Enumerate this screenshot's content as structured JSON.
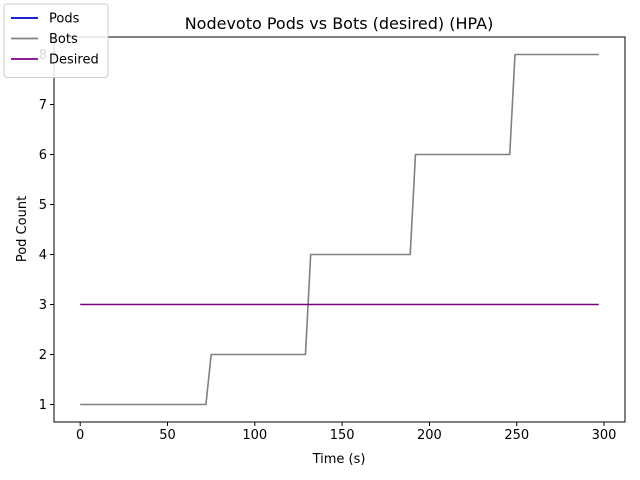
{
  "chart_data": {
    "type": "line",
    "title": "Nodevoto Pods vs Bots (desired)  (HPA)",
    "xlabel": "Time (s)",
    "ylabel": "Pod Count",
    "xlim": [
      -15,
      312
    ],
    "ylim": [
      0.65,
      8.35
    ],
    "xticks": [
      0,
      50,
      100,
      150,
      200,
      250,
      300
    ],
    "yticks": [
      1,
      2,
      3,
      4,
      5,
      6,
      7,
      8
    ],
    "grid": false,
    "legend_position": "top-left",
    "series": [
      {
        "name": "Pods",
        "color": "#0000cc",
        "x": [],
        "y": []
      },
      {
        "name": "Bots",
        "color": "#808080",
        "x": [
          0,
          72,
          75,
          129,
          132,
          189,
          192,
          246,
          249,
          297
        ],
        "y": [
          1,
          1,
          2,
          2,
          4,
          4,
          6,
          6,
          8,
          8
        ]
      },
      {
        "name": "Desired",
        "color": "#800080",
        "x": [
          0,
          297
        ],
        "y": [
          3,
          3
        ]
      }
    ]
  }
}
